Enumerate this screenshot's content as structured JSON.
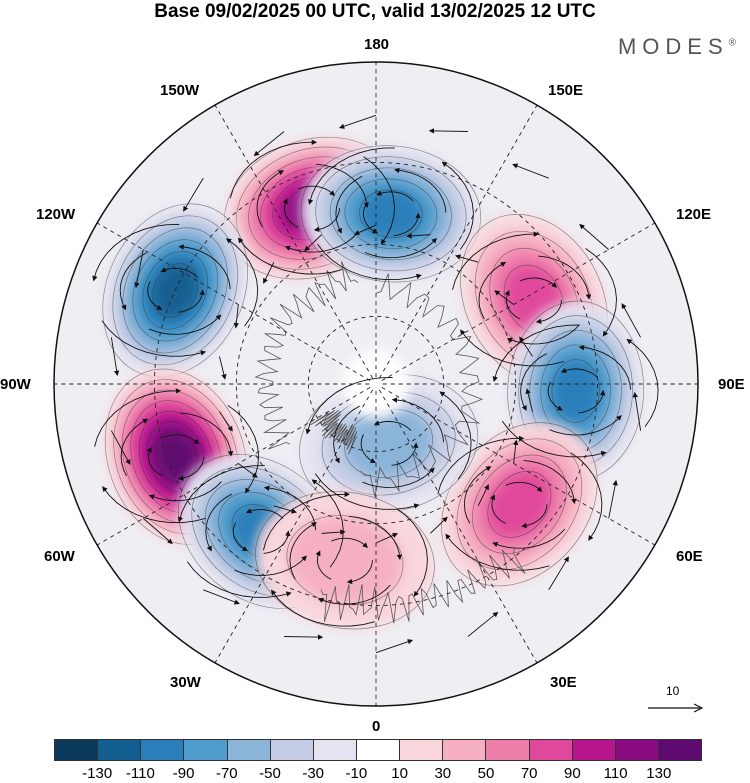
{
  "header": {
    "title": "Base 09/02/2025 00 UTC, valid 13/02/2025 12 UTC",
    "brand": "MODES",
    "brand_mark": "®"
  },
  "map": {
    "projection": "north-polar-stereographic",
    "longitude_labels": {
      "top": "180",
      "top_left": "150W",
      "top_right": "150E",
      "upper_left": "120W",
      "upper_right": "120E",
      "left": "90W",
      "right": "90E",
      "lower_left": "60W",
      "lower_right": "60E",
      "bottom_left": "30W",
      "bottom_right": "30E",
      "bottom": "0"
    },
    "vector_reference": {
      "label": "10"
    },
    "anomaly_centers": [
      {
        "name": "pos-150W",
        "lon": -160,
        "lat": 38,
        "value": 120
      },
      {
        "name": "neg-180",
        "lon": 175,
        "lat": 42,
        "value": -90
      },
      {
        "name": "neg-120W",
        "lon": -115,
        "lat": 30,
        "value": -120
      },
      {
        "name": "pos-120E",
        "lon": 118,
        "lat": 40,
        "value": 80
      },
      {
        "name": "neg-90E",
        "lon": 88,
        "lat": 35,
        "value": -100
      },
      {
        "name": "pos-70W",
        "lon": -70,
        "lat": 32,
        "value": 130
      },
      {
        "name": "neg-45W",
        "lon": -38,
        "lat": 38,
        "value": -90
      },
      {
        "name": "pos-55E",
        "lon": 50,
        "lat": 38,
        "value": 70
      },
      {
        "name": "neg-15E",
        "lon": 12,
        "lat": 72,
        "value": -50
      },
      {
        "name": "pos-20W",
        "lon": -10,
        "lat": 40,
        "value": 30
      }
    ]
  },
  "colorbar": {
    "colors": [
      "#0b3a5c",
      "#135e90",
      "#2a7fba",
      "#4f9bcb",
      "#8bb4d9",
      "#c3cce4",
      "#e5e3f0",
      "#ffffff",
      "#f9d6dc",
      "#f5b1c2",
      "#ee7fab",
      "#e0489b",
      "#b8168d",
      "#8a0c82",
      "#5e0a70"
    ],
    "tick_labels": [
      "-130",
      "-110",
      "-90",
      "-70",
      "-50",
      "-30",
      "-10",
      "10",
      "30",
      "50",
      "70",
      "90",
      "110",
      "130"
    ]
  }
}
